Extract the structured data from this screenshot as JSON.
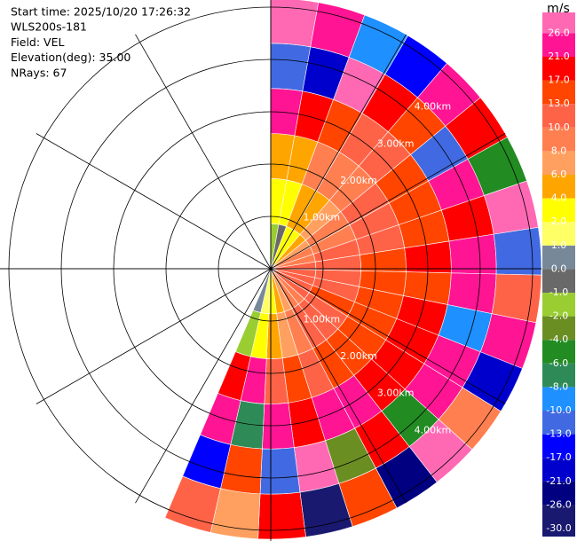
{
  "chart_data": {
    "type": "ppi",
    "info": [
      "Start time: 2025/10/20 17:26:32",
      "WLS200s-181",
      "Field: VEL",
      "Elevation(deg): 35.00",
      "NRays: 67"
    ],
    "unit": "m/s",
    "range_labels": [
      "1.00km",
      "2.00km",
      "3.00km",
      "4.00km"
    ],
    "colorbar": {
      "ticks": [
        {
          "value": -30,
          "label": "-30.0"
        },
        {
          "value": -26,
          "label": "-26.0"
        },
        {
          "value": -21,
          "label": "-21.0"
        },
        {
          "value": -17,
          "label": "-17.0"
        },
        {
          "value": -13,
          "label": "-13.0"
        },
        {
          "value": -10,
          "label": "-10.0"
        },
        {
          "value": -8,
          "label": "-8.0"
        },
        {
          "value": -6,
          "label": "-6.0"
        },
        {
          "value": -4,
          "label": "-4.0"
        },
        {
          "value": -2,
          "label": "-2.0"
        },
        {
          "value": -1,
          "label": "-1.0"
        },
        {
          "value": 0,
          "label": "0.0"
        },
        {
          "value": 1,
          "label": "1.0"
        },
        {
          "value": 2,
          "label": "2.0"
        },
        {
          "value": 4,
          "label": "4.0"
        },
        {
          "value": 6,
          "label": "6.0"
        },
        {
          "value": 8,
          "label": "8.0"
        },
        {
          "value": 10,
          "label": "10.0"
        },
        {
          "value": 13,
          "label": "13.0"
        },
        {
          "value": 17,
          "label": "17.0"
        },
        {
          "value": 21,
          "label": "21.0"
        },
        {
          "value": 26,
          "label": "26.0"
        }
      ],
      "colors": [
        "#191970",
        "#000080",
        "#0000cd",
        "#0000ff",
        "#4169e1",
        "#1e90ff",
        "#2e8b57",
        "#228b22",
        "#6b8e23",
        "#9acd32",
        "#696969",
        "#778899",
        "#ffff66",
        "#ffff00",
        "#ffa500",
        "#ffa060",
        "#ff7f50",
        "#ff6347",
        "#ff4500",
        "#ff0000",
        "#ff1493",
        "#ff69b4"
      ]
    },
    "values": [
      [
        -2,
        2,
        4,
        21,
        -13,
        26
      ],
      [
        -1,
        3,
        5,
        17,
        -21,
        21
      ],
      [
        2,
        4,
        9,
        13,
        26,
        -10
      ],
      [
        3,
        5,
        8,
        11,
        19,
        -17
      ],
      [
        5,
        7,
        9,
        12,
        15,
        23
      ],
      [
        6,
        8,
        11,
        14,
        -13,
        18
      ],
      [
        8,
        9,
        12,
        15,
        22,
        -5
      ],
      [
        9,
        11,
        12,
        16,
        19,
        26
      ],
      [
        10,
        11,
        13,
        18,
        21,
        -13
      ],
      [
        11,
        12,
        14,
        16,
        23,
        11
      ],
      [
        10,
        12,
        15,
        19,
        -10,
        25
      ],
      [
        11,
        13,
        14,
        17,
        22,
        -18
      ],
      [
        10,
        12,
        16,
        20,
        24,
        9
      ],
      [
        9,
        11,
        15,
        18,
        -6,
        27
      ],
      [
        8,
        10,
        14,
        21,
        17,
        -22
      ],
      [
        6,
        9,
        12,
        23,
        -3,
        14
      ],
      [
        4,
        7,
        13,
        18,
        26,
        -27
      ],
      [
        2,
        5,
        11,
        25,
        -12,
        20
      ],
      [
        1,
        3,
        22,
        -8,
        16,
        7
      ],
      [
        0,
        -2,
        18,
        24,
        -15,
        12
      ]
    ]
  }
}
